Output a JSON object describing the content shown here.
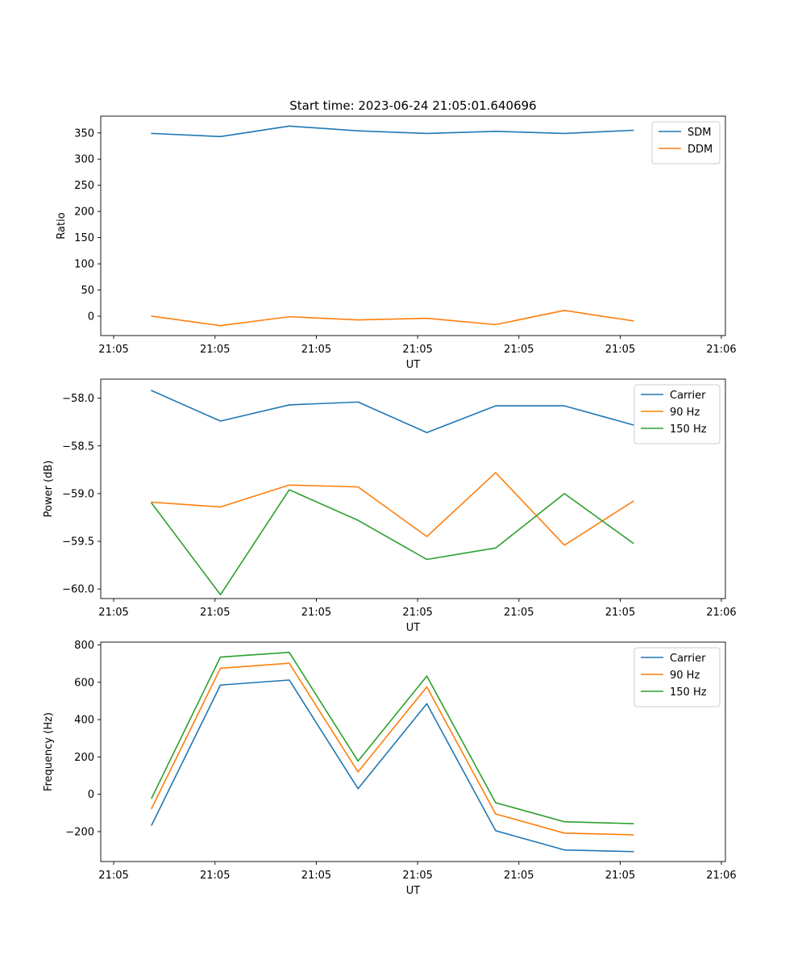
{
  "figure_title": "Start time: 2023-06-24 21:05:01.640696",
  "colors": {
    "c0": "#1f77b4",
    "c1": "#ff7f0e",
    "c2": "#2ca02c"
  },
  "chart_data": [
    {
      "type": "line",
      "title": "Start time: 2023-06-24 21:05:01.640696",
      "xlabel": "UT",
      "ylabel": "Ratio",
      "x": [
        "21:05:01.6",
        "21:05:02.1",
        "21:05:02.6",
        "21:05:03.1",
        "21:05:03.6",
        "21:05:04.1",
        "21:05:04.6",
        "21:05:05.1"
      ],
      "xticks": [
        "21:05",
        "21:05",
        "21:05",
        "21:05",
        "21:05",
        "21:05",
        "21:06"
      ],
      "xlim": [
        "21:05:01.23",
        "21:05:05.77"
      ],
      "ylim": [
        -37,
        382
      ],
      "yticks": [
        0,
        50,
        100,
        150,
        200,
        250,
        300,
        350
      ],
      "legend_position": "upper right",
      "series": [
        {
          "name": "SDM",
          "color": "#1f77b4",
          "values": [
            349,
            343,
            363,
            354,
            349,
            353,
            349,
            355
          ]
        },
        {
          "name": "DDM",
          "color": "#ff7f0e",
          "values": [
            0,
            -18,
            -1,
            -7,
            -4,
            -16,
            11,
            -9
          ]
        }
      ]
    },
    {
      "type": "line",
      "xlabel": "UT",
      "ylabel": "Power (dB)",
      "x": [
        "21:05:01.6",
        "21:05:02.1",
        "21:05:02.6",
        "21:05:03.1",
        "21:05:03.6",
        "21:05:04.1",
        "21:05:04.6",
        "21:05:05.1"
      ],
      "xticks": [
        "21:05",
        "21:05",
        "21:05",
        "21:05",
        "21:05",
        "21:05",
        "21:06"
      ],
      "xlim": [
        "21:05:01.23",
        "21:05:05.77"
      ],
      "ylim": [
        -60.1,
        -57.8
      ],
      "yticks": [
        -58.0,
        -58.5,
        -59.0,
        -59.5,
        -60.0
      ],
      "ytick_labels": [
        "−58.0",
        "−58.5",
        "−59.0",
        "−59.5",
        "−60.0"
      ],
      "legend_position": "upper right",
      "series": [
        {
          "name": "Carrier",
          "color": "#1f77b4",
          "values": [
            -57.92,
            -58.24,
            -58.07,
            -58.04,
            -58.36,
            -58.08,
            -58.08,
            -58.28
          ]
        },
        {
          "name": "90 Hz",
          "color": "#ff7f0e",
          "values": [
            -59.09,
            -59.14,
            -58.91,
            -58.93,
            -59.45,
            -58.78,
            -59.54,
            -59.08
          ]
        },
        {
          "name": "150 Hz",
          "color": "#2ca02c",
          "values": [
            -59.1,
            -60.06,
            -58.96,
            -59.28,
            -59.69,
            -59.57,
            -59.0,
            -59.52
          ]
        }
      ]
    },
    {
      "type": "line",
      "xlabel": "UT",
      "ylabel": "Frequency (Hz)",
      "x": [
        "21:05:01.6",
        "21:05:02.1",
        "21:05:02.6",
        "21:05:03.1",
        "21:05:03.6",
        "21:05:04.1",
        "21:05:04.6",
        "21:05:05.1"
      ],
      "xticks": [
        "21:05",
        "21:05",
        "21:05",
        "21:05",
        "21:05",
        "21:05",
        "21:06"
      ],
      "xlim": [
        "21:05:01.23",
        "21:05:05.77"
      ],
      "ylim": [
        -360,
        815
      ],
      "yticks": [
        -200,
        0,
        200,
        400,
        600,
        800
      ],
      "ytick_labels": [
        "−200",
        "0",
        "200",
        "400",
        "600",
        "800"
      ],
      "legend_position": "upper right",
      "series": [
        {
          "name": "Carrier",
          "color": "#1f77b4",
          "values": [
            -165,
            585,
            612,
            30,
            485,
            -195,
            -298,
            -307
          ]
        },
        {
          "name": "90 Hz",
          "color": "#ff7f0e",
          "values": [
            -75,
            675,
            702,
            120,
            575,
            -105,
            -208,
            -217
          ]
        },
        {
          "name": "150 Hz",
          "color": "#2ca02c",
          "values": [
            -20,
            735,
            760,
            178,
            633,
            -45,
            -147,
            -157
          ]
        }
      ]
    }
  ]
}
